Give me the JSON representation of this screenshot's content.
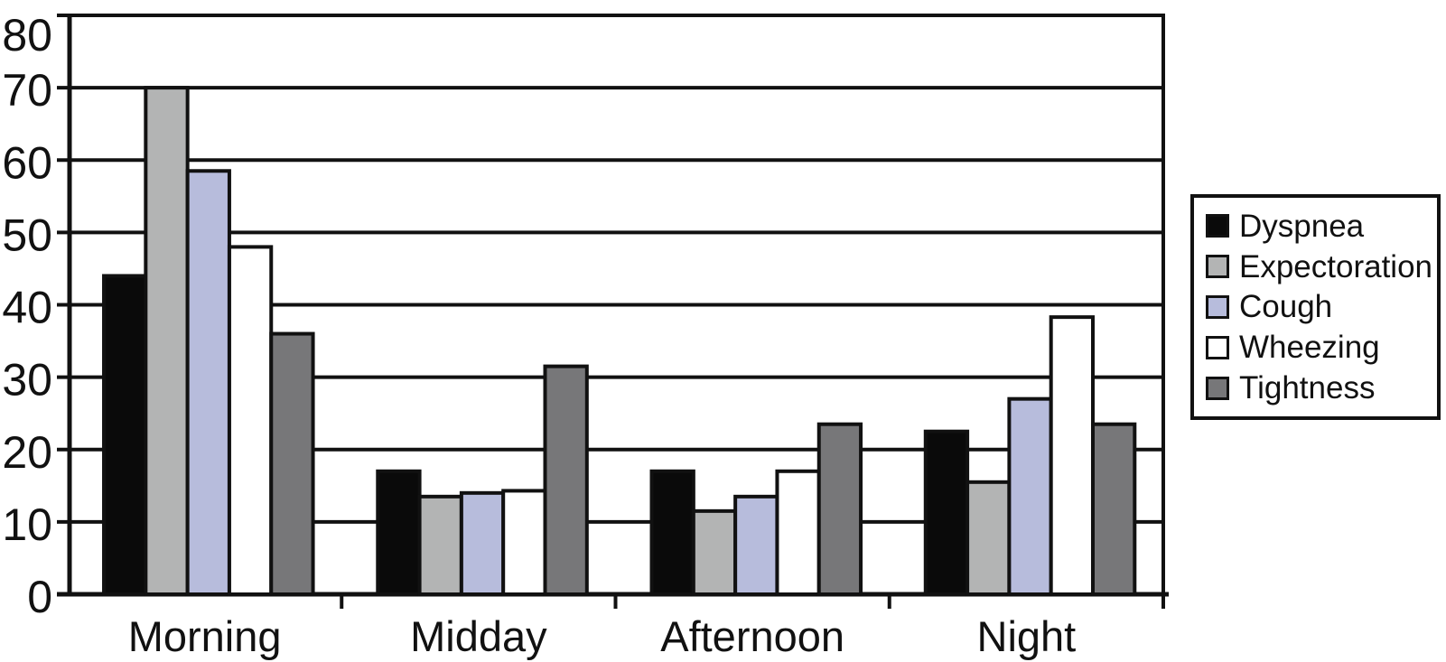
{
  "chart_data": {
    "type": "bar",
    "title": "",
    "xlabel": "",
    "ylabel": "",
    "categories": [
      "Morning",
      "Midday",
      "Afternoon",
      "Night"
    ],
    "series": [
      {
        "name": "Dyspnea",
        "color": "#0a0a0a",
        "values": [
          44,
          17,
          17,
          22.5
        ]
      },
      {
        "name": "Expectoration",
        "color": "#b3b4b4",
        "values": [
          70,
          13.5,
          11.5,
          15.5
        ]
      },
      {
        "name": "Cough",
        "color": "#b7bcdc",
        "values": [
          58.5,
          14,
          13.5,
          27
        ]
      },
      {
        "name": "Wheezing",
        "color": "#ffffff",
        "values": [
          48,
          14.3,
          17,
          38.3
        ]
      },
      {
        "name": "Tightness",
        "color": "#777779",
        "values": [
          36,
          31.5,
          23.5,
          23.5
        ]
      }
    ],
    "ylim": [
      0,
      80
    ],
    "y_ticks": [
      0,
      10,
      20,
      30,
      40,
      50,
      60,
      70,
      80
    ],
    "grid": true,
    "legend_position": "right"
  },
  "colors": {
    "axis": "#111111",
    "background": "#ffffff"
  }
}
